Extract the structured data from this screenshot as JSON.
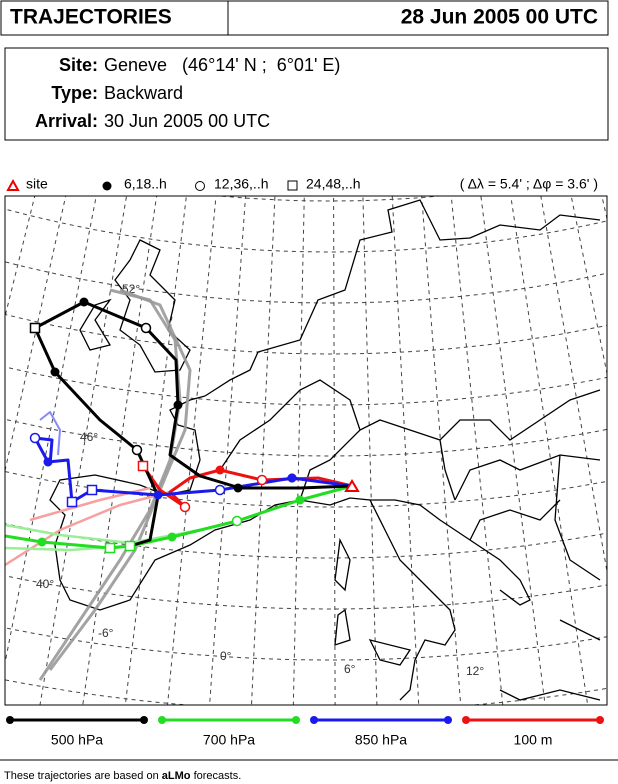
{
  "header": {
    "title": "TRAJECTORIES",
    "date": "28 Jun 2005 00 UTC"
  },
  "info": {
    "rows": [
      {
        "label": "Site:",
        "value": "Geneve   (46°14' N ;  6°01' E)"
      },
      {
        "label": "Type:",
        "value": "Backward"
      },
      {
        "label": "Arrival:",
        "value": "30 Jun 2005 00 UTC"
      }
    ]
  },
  "legend": {
    "site": "site",
    "marker_6": "6,18..h",
    "marker_12": "12,36,..h",
    "marker_24": "24,48,..h",
    "resolution": "( Δλ = 5.4' ; Δφ = 3.6' )"
  },
  "map": {
    "graticule_labels": [
      "52°",
      "46°",
      "40°",
      "-6°",
      "0°",
      "6°",
      "12°"
    ]
  },
  "levels": [
    {
      "name": "500 hPa",
      "color": "#000000"
    },
    {
      "name": "700 hPa",
      "color": "#22dd22"
    },
    {
      "name": "850 hPa",
      "color": "#1a1aee"
    },
    {
      "name": "100 m",
      "color": "#ee1111"
    }
  ],
  "footer": {
    "prefix": "These trajectories are based on",
    "model": "aLMo",
    "suffix": "forecasts."
  }
}
